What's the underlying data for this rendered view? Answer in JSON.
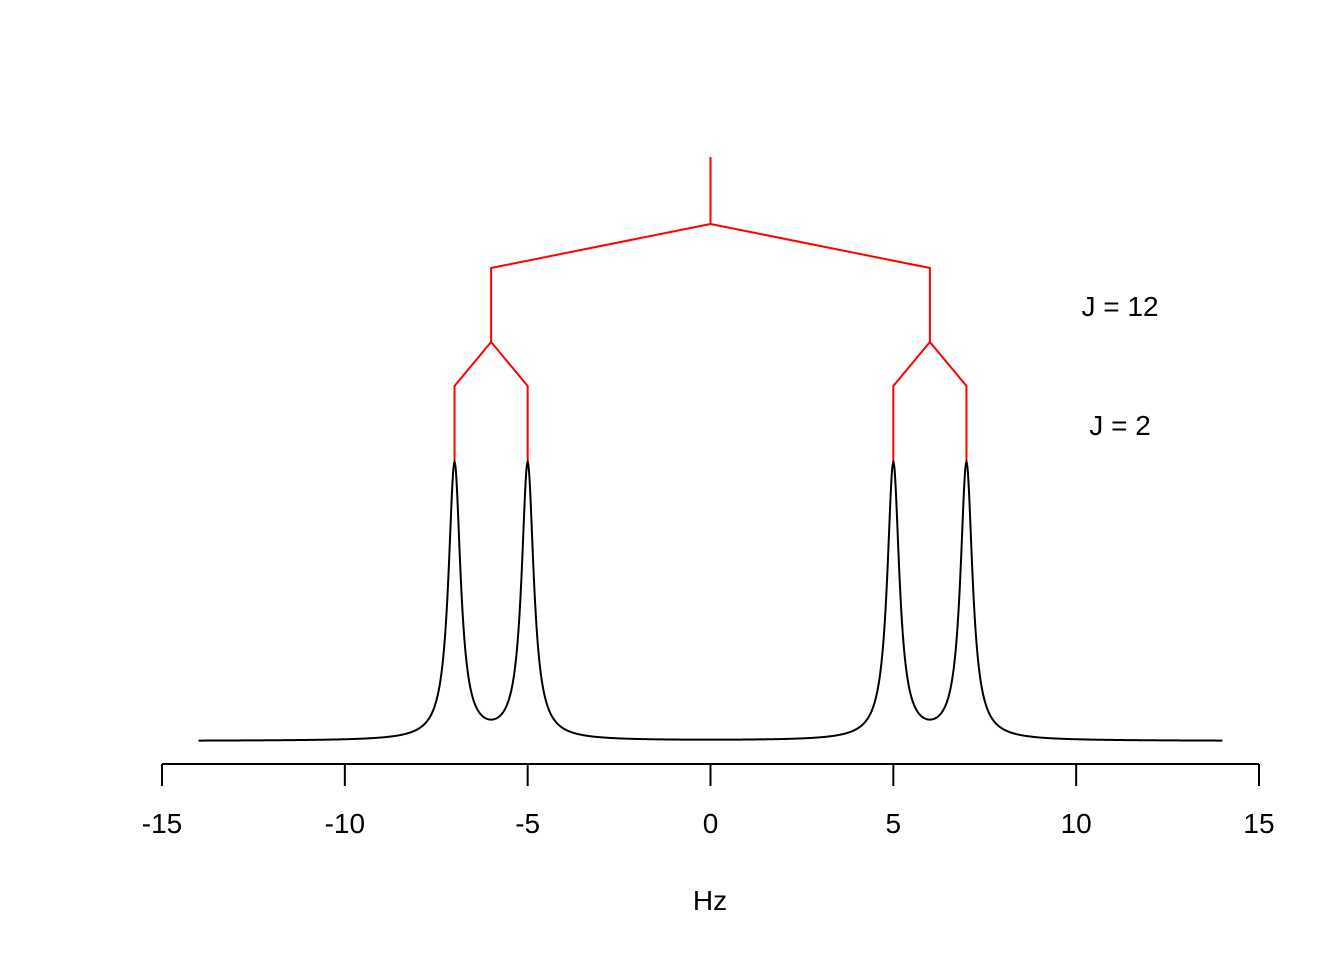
{
  "chart_data": {
    "type": "line",
    "title": "",
    "xlabel": "Hz",
    "ylabel": "",
    "xlim": [
      -15,
      15
    ],
    "ticks": [
      {
        "value": -15,
        "label": "-15"
      },
      {
        "value": -10,
        "label": "-10"
      },
      {
        "value": -5,
        "label": "-5"
      },
      {
        "value": 0,
        "label": "0"
      },
      {
        "value": 5,
        "label": "5"
      },
      {
        "value": 10,
        "label": "10"
      },
      {
        "value": 15,
        "label": "15"
      }
    ],
    "spectrum": {
      "x_range": [
        -14,
        14
      ],
      "peak_positions": [
        -7,
        -5,
        5,
        7
      ],
      "linewidth_half_width": 0.2,
      "color": "#000000"
    },
    "splitting_tree": {
      "color": "#ff0000",
      "center": 0,
      "first_split_positions": [
        -6,
        6
      ],
      "second_split_positions": [
        -7,
        -5,
        5,
        7
      ]
    },
    "annotations": [
      {
        "name": "j-large",
        "text": "J = 12",
        "x": 11.2
      },
      {
        "name": "j-small",
        "text": "J = 2",
        "x": 11.2
      }
    ]
  }
}
